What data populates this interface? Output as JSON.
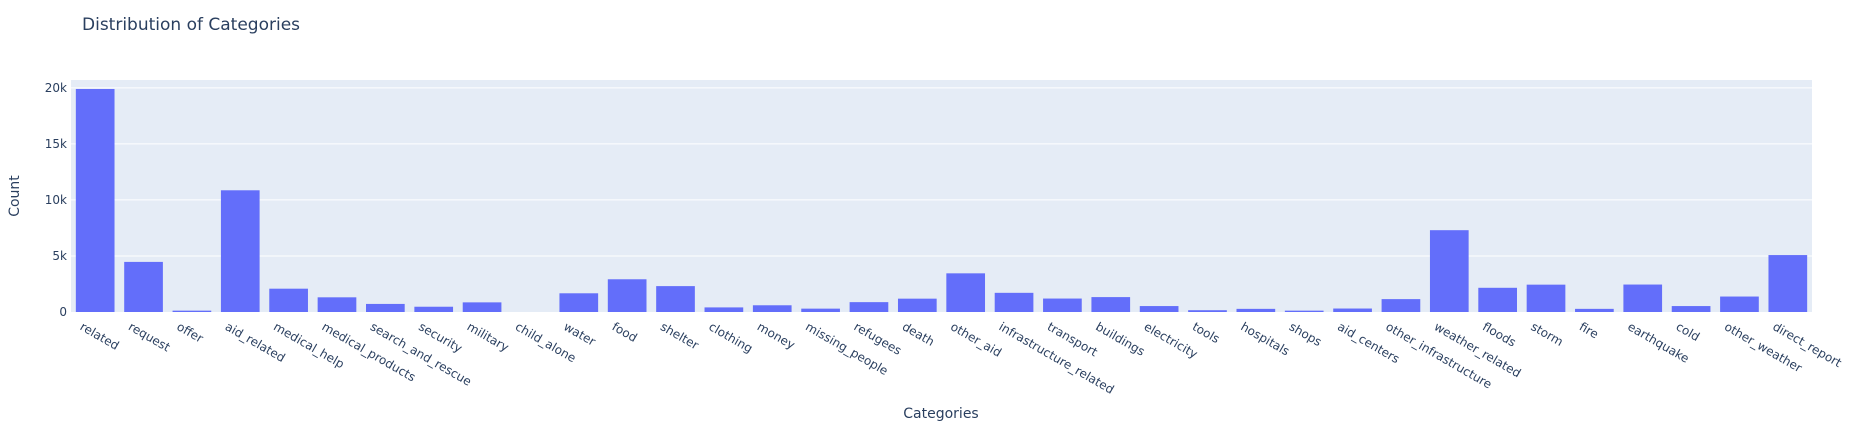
{
  "chart_data": {
    "type": "bar",
    "title": "Distribution of Categories",
    "xlabel": "Categories",
    "ylabel": "Count",
    "ylim": [
      0,
      20700
    ],
    "yticks": [
      0,
      5000,
      10000,
      15000,
      20000
    ],
    "ytick_labels": [
      "0",
      "5k",
      "10k",
      "15k",
      "20k"
    ],
    "grid": true,
    "colors": {
      "bar": "#636efa",
      "plot_bg": "#e5ecf6",
      "grid": "#ffffff",
      "text": "#2a3f5f"
    },
    "categories": [
      "related",
      "request",
      "offer",
      "aid_related",
      "medical_help",
      "medical_products",
      "search_and_rescue",
      "security",
      "military",
      "child_alone",
      "water",
      "food",
      "shelter",
      "clothing",
      "money",
      "missing_people",
      "refugees",
      "death",
      "other_aid",
      "infrastructure_related",
      "transport",
      "buildings",
      "electricity",
      "tools",
      "hospitals",
      "shops",
      "aid_centers",
      "other_infrastructure",
      "weather_related",
      "floods",
      "storm",
      "fire",
      "earthquake",
      "cold",
      "other_weather",
      "direct_report"
    ],
    "values": [
      19900,
      4470,
      120,
      10860,
      2080,
      1310,
      720,
      470,
      860,
      0,
      1670,
      2920,
      2310,
      410,
      600,
      300,
      880,
      1190,
      3450,
      1710,
      1200,
      1330,
      530,
      160,
      280,
      120,
      310,
      1150,
      7300,
      2160,
      2440,
      280,
      2450,
      530,
      1380,
      5080
    ]
  }
}
